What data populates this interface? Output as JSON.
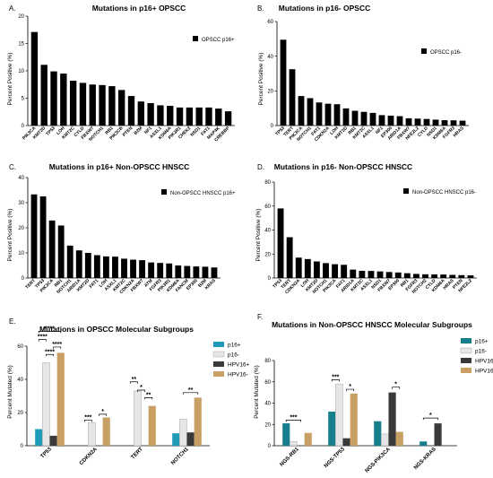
{
  "panel_letters": [
    "A.",
    "B.",
    "C.",
    "D.",
    "E.",
    "F."
  ],
  "chart_data": [
    {
      "type": "bar",
      "title": "Mutations in p16+ OPSCC",
      "ylabel": "Percent Positive (%)",
      "xlabel": "",
      "ylim": [
        0,
        20
      ],
      "yticks": [
        0,
        5,
        10,
        15,
        20
      ],
      "categories": [
        "PIK3CA",
        "KMT2D",
        "TP53",
        "LOH",
        "KMT2C",
        "CYLD",
        "FBXW7",
        "NOTCH1",
        "RB1",
        "PIK3CB",
        "PTEN",
        "B2M",
        "NF1",
        "ASXL1",
        "KDM6A",
        "PIK3R1",
        "CHEK2",
        "NSD1",
        "FAT1",
        "MAP4K",
        "CREBBP"
      ],
      "series": [
        {
          "name": "OPSCC p16+",
          "values": [
            17.1,
            11.1,
            9.9,
            9.5,
            8.2,
            7.8,
            7.5,
            7.4,
            7.2,
            6.5,
            5.4,
            4.4,
            4.1,
            3.7,
            3.6,
            3.3,
            3.3,
            3.3,
            3.3,
            3.1,
            2.6
          ],
          "color": "#000000"
        }
      ],
      "legend": "top-right",
      "grid": false
    },
    {
      "type": "bar",
      "title": "Mutations in p16- OPSCC",
      "ylabel": "Percent Positive (%)",
      "xlabel": "",
      "ylim": [
        0,
        60
      ],
      "yticks": [
        0,
        20,
        40,
        60
      ],
      "categories": [
        "TP53",
        "TERT",
        "PIK3CA",
        "NOTCH1",
        "FAT1",
        "CDKN2A",
        "LOH",
        "KMT2D",
        "RB1",
        "KMT2C",
        "ASXL1",
        "NF1",
        "EP300",
        "ARID1A",
        "FBXW7",
        "NFE2L2",
        "CYLD",
        "NSD1",
        "KDM6A",
        "FGFR3",
        "HRAS"
      ],
      "series": [
        {
          "name": "OPSCC p16-",
          "values": [
            49.5,
            32.5,
            17,
            15.8,
            13.3,
            12.6,
            12.3,
            9.9,
            8.5,
            7.9,
            7.3,
            6,
            5.7,
            5.4,
            4.2,
            4,
            3.8,
            3.4,
            3.1,
            3,
            2.8
          ],
          "color": "#000000"
        }
      ],
      "legend": "top-right",
      "grid": false
    },
    {
      "type": "bar",
      "title": "Mutations in p16+ Non-OPSCC HNSCC",
      "ylabel": "Percent Positive (%)",
      "xlabel": "",
      "ylim": [
        0,
        40
      ],
      "yticks": [
        0,
        10,
        20,
        30,
        40
      ],
      "categories": [
        "TERT",
        "TP53",
        "PIK3CA",
        "RB1",
        "NOTCH1",
        "ARID1A",
        "KMT2D",
        "FAT1",
        "LOH",
        "ASXL1",
        "KMT2C",
        "CDKN2A",
        "FBXW7",
        "ATM",
        "FGFR3",
        "PIK3R1",
        "KDM6A",
        "FANCM",
        "EP300",
        "B2M",
        "KRAS"
      ],
      "series": [
        {
          "name": "Non-OPSCC HNSCC p16+",
          "values": [
            33.3,
            32.5,
            22.9,
            20.9,
            12.9,
            11,
            10,
            9.1,
            8.6,
            8.5,
            7.7,
            7.3,
            7.1,
            6.2,
            6,
            5.8,
            5,
            4.8,
            4.6,
            4.5,
            4.2
          ],
          "color": "#000000"
        }
      ],
      "legend": "top-right",
      "grid": false
    },
    {
      "type": "bar",
      "title": "Mutations in p16- Non-OPSCC HNSCC",
      "ylabel": "Percent Positive (%)",
      "xlabel": "",
      "ylim": [
        0,
        80
      ],
      "yticks": [
        0,
        20,
        40,
        60,
        80
      ],
      "categories": [
        "TP53",
        "TERT",
        "CDKN2A",
        "LOH",
        "KMT2D",
        "NOTCH1",
        "PIK3CA",
        "FAT1",
        "ARID1A",
        "KMT2C",
        "ASXL1",
        "NSD1",
        "FBXW7",
        "EP300",
        "RB1",
        "FGFR3",
        "NOTCH2",
        "CYLD",
        "KDM6A",
        "HRAS",
        "PTEN",
        "NFE2L2"
      ],
      "series": [
        {
          "name": "Non-OPSCC HNSCC p16-",
          "values": [
            58,
            34,
            17,
            15.8,
            13.8,
            12.4,
            11.5,
            11,
            7,
            6,
            5.9,
            5.5,
            5,
            4.6,
            4,
            3.4,
            3.1,
            3,
            2.9,
            2.6,
            2.4,
            2.2
          ],
          "color": "#000000"
        }
      ],
      "legend": "top-right",
      "grid": false
    },
    {
      "type": "bar",
      "title": "Mutations in OPSCC Molecular Subgroups",
      "ylabel": "Percent Mutated (%)",
      "xlabel": "",
      "ylim": [
        0,
        60
      ],
      "yticks": [
        0,
        20,
        40,
        60
      ],
      "categories": [
        "TP53",
        "CDKN2A",
        "TERT",
        "NOTCH1"
      ],
      "series": [
        {
          "name": "p16+",
          "values": [
            10,
            0,
            0,
            7.5
          ],
          "color": "#1f9bb8"
        },
        {
          "name": "p16-",
          "values": [
            50,
            14,
            33,
            16
          ],
          "color": "#e6e6e6"
        },
        {
          "name": "HPV16+",
          "values": [
            6,
            0,
            0,
            8
          ],
          "color": "#3a3a3a"
        },
        {
          "name": "HPV16-",
          "values": [
            56,
            17,
            24,
            29
          ],
          "color": "#c9a063"
        }
      ],
      "significance": [
        "****",
        "****",
        "****",
        "****",
        "***",
        "*",
        "**",
        "*",
        "**",
        "**"
      ],
      "legend": "top-right",
      "grid": false
    },
    {
      "type": "bar",
      "title": "Mutations in Non-OPSCC HNSCC Molecular Subgroups",
      "ylabel": "Percent Mutated (%)",
      "xlabel": "",
      "ylim": [
        0,
        80
      ],
      "yticks": [
        0,
        20,
        40,
        60,
        80
      ],
      "categories": [
        "NGS-RB1",
        "NGS-TP53",
        "NGS-PIK3CA",
        "NGS-KRAS"
      ],
      "series": [
        {
          "name": "p16+",
          "values": [
            21,
            32,
            23,
            4
          ],
          "color": "#167f8c"
        },
        {
          "name": "p16-",
          "values": [
            4,
            58,
            11,
            0
          ],
          "color": "#e6e6e6"
        },
        {
          "name": "HPV16+",
          "values": [
            0,
            7,
            50,
            21
          ],
          "color": "#3a3a3a"
        },
        {
          "name": "HPV16-",
          "values": [
            12,
            49,
            13,
            0
          ],
          "color": "#c9a063"
        }
      ],
      "significance": [
        "***",
        "***",
        "*",
        "*",
        "*"
      ],
      "legend": "top-right",
      "grid": false
    }
  ]
}
